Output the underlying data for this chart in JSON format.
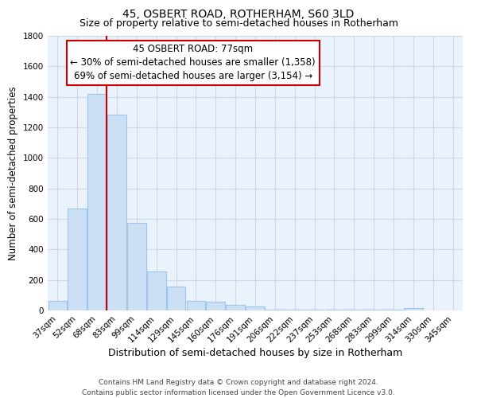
{
  "title": "45, OSBERT ROAD, ROTHERHAM, S60 3LD",
  "subtitle": "Size of property relative to semi-detached houses in Rotherham",
  "xlabel": "Distribution of semi-detached houses by size in Rotherham",
  "ylabel": "Number of semi-detached properties",
  "bar_labels": [
    "37sqm",
    "52sqm",
    "68sqm",
    "83sqm",
    "99sqm",
    "114sqm",
    "129sqm",
    "145sqm",
    "160sqm",
    "176sqm",
    "191sqm",
    "206sqm",
    "222sqm",
    "237sqm",
    "253sqm",
    "268sqm",
    "283sqm",
    "299sqm",
    "314sqm",
    "330sqm",
    "345sqm"
  ],
  "bar_values": [
    65,
    670,
    1420,
    1285,
    575,
    255,
    155,
    65,
    60,
    35,
    25,
    5,
    5,
    5,
    5,
    5,
    5,
    5,
    15,
    0,
    0
  ],
  "bar_color": "#cce0f5",
  "bar_edge_color": "#a0c4e8",
  "vline_color": "#cc0000",
  "vline_bar_index": 2,
  "annotation_line1": "45 OSBERT ROAD: 77sqm",
  "annotation_line2": "← 30% of semi-detached houses are smaller (1,358)",
  "annotation_line3": "69% of semi-detached houses are larger (3,154) →",
  "ylim": [
    0,
    1800
  ],
  "yticks": [
    0,
    200,
    400,
    600,
    800,
    1000,
    1200,
    1400,
    1600,
    1800
  ],
  "footer_line1": "Contains HM Land Registry data © Crown copyright and database right 2024.",
  "footer_line2": "Contains public sector information licensed under the Open Government Licence v3.0.",
  "title_fontsize": 10,
  "subtitle_fontsize": 9,
  "xlabel_fontsize": 9,
  "ylabel_fontsize": 8.5,
  "tick_fontsize": 7.5,
  "annotation_fontsize": 8.5,
  "footer_fontsize": 6.5,
  "grid_color": "#d0d8e8",
  "background_color": "#eaf2fb"
}
